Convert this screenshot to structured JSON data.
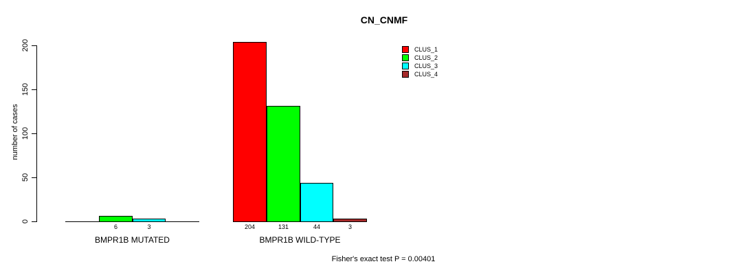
{
  "chart_data": {
    "type": "bar",
    "title": "CN_CNMF",
    "ylabel": "number of cases",
    "xlabel": "",
    "ylim": [
      0,
      200
    ],
    "yticks": [
      0,
      50,
      100,
      150,
      200
    ],
    "grid": false,
    "legend_position": "top-right-inside",
    "categories": [
      "BMPR1B MUTATED",
      "BMPR1B WILD-TYPE"
    ],
    "series": [
      {
        "name": "CLUS_1",
        "color": "#ff0000",
        "values": [
          0,
          204
        ]
      },
      {
        "name": "CLUS_2",
        "color": "#00ff00",
        "values": [
          6,
          131
        ]
      },
      {
        "name": "CLUS_3",
        "color": "#00ffff",
        "values": [
          3,
          44
        ]
      },
      {
        "name": "CLUS_4",
        "color": "#a52a2a",
        "values": [
          0,
          3
        ]
      }
    ],
    "bar_value_labels": [
      [
        null,
        6,
        3,
        null
      ],
      [
        204,
        131,
        44,
        3
      ]
    ],
    "show_zero_bars": false,
    "annotation": "Fisher's exact test P = 0.00401",
    "bar_outline_color": "#000000",
    "text_color": "#000000",
    "background_color": "#ffffff"
  }
}
